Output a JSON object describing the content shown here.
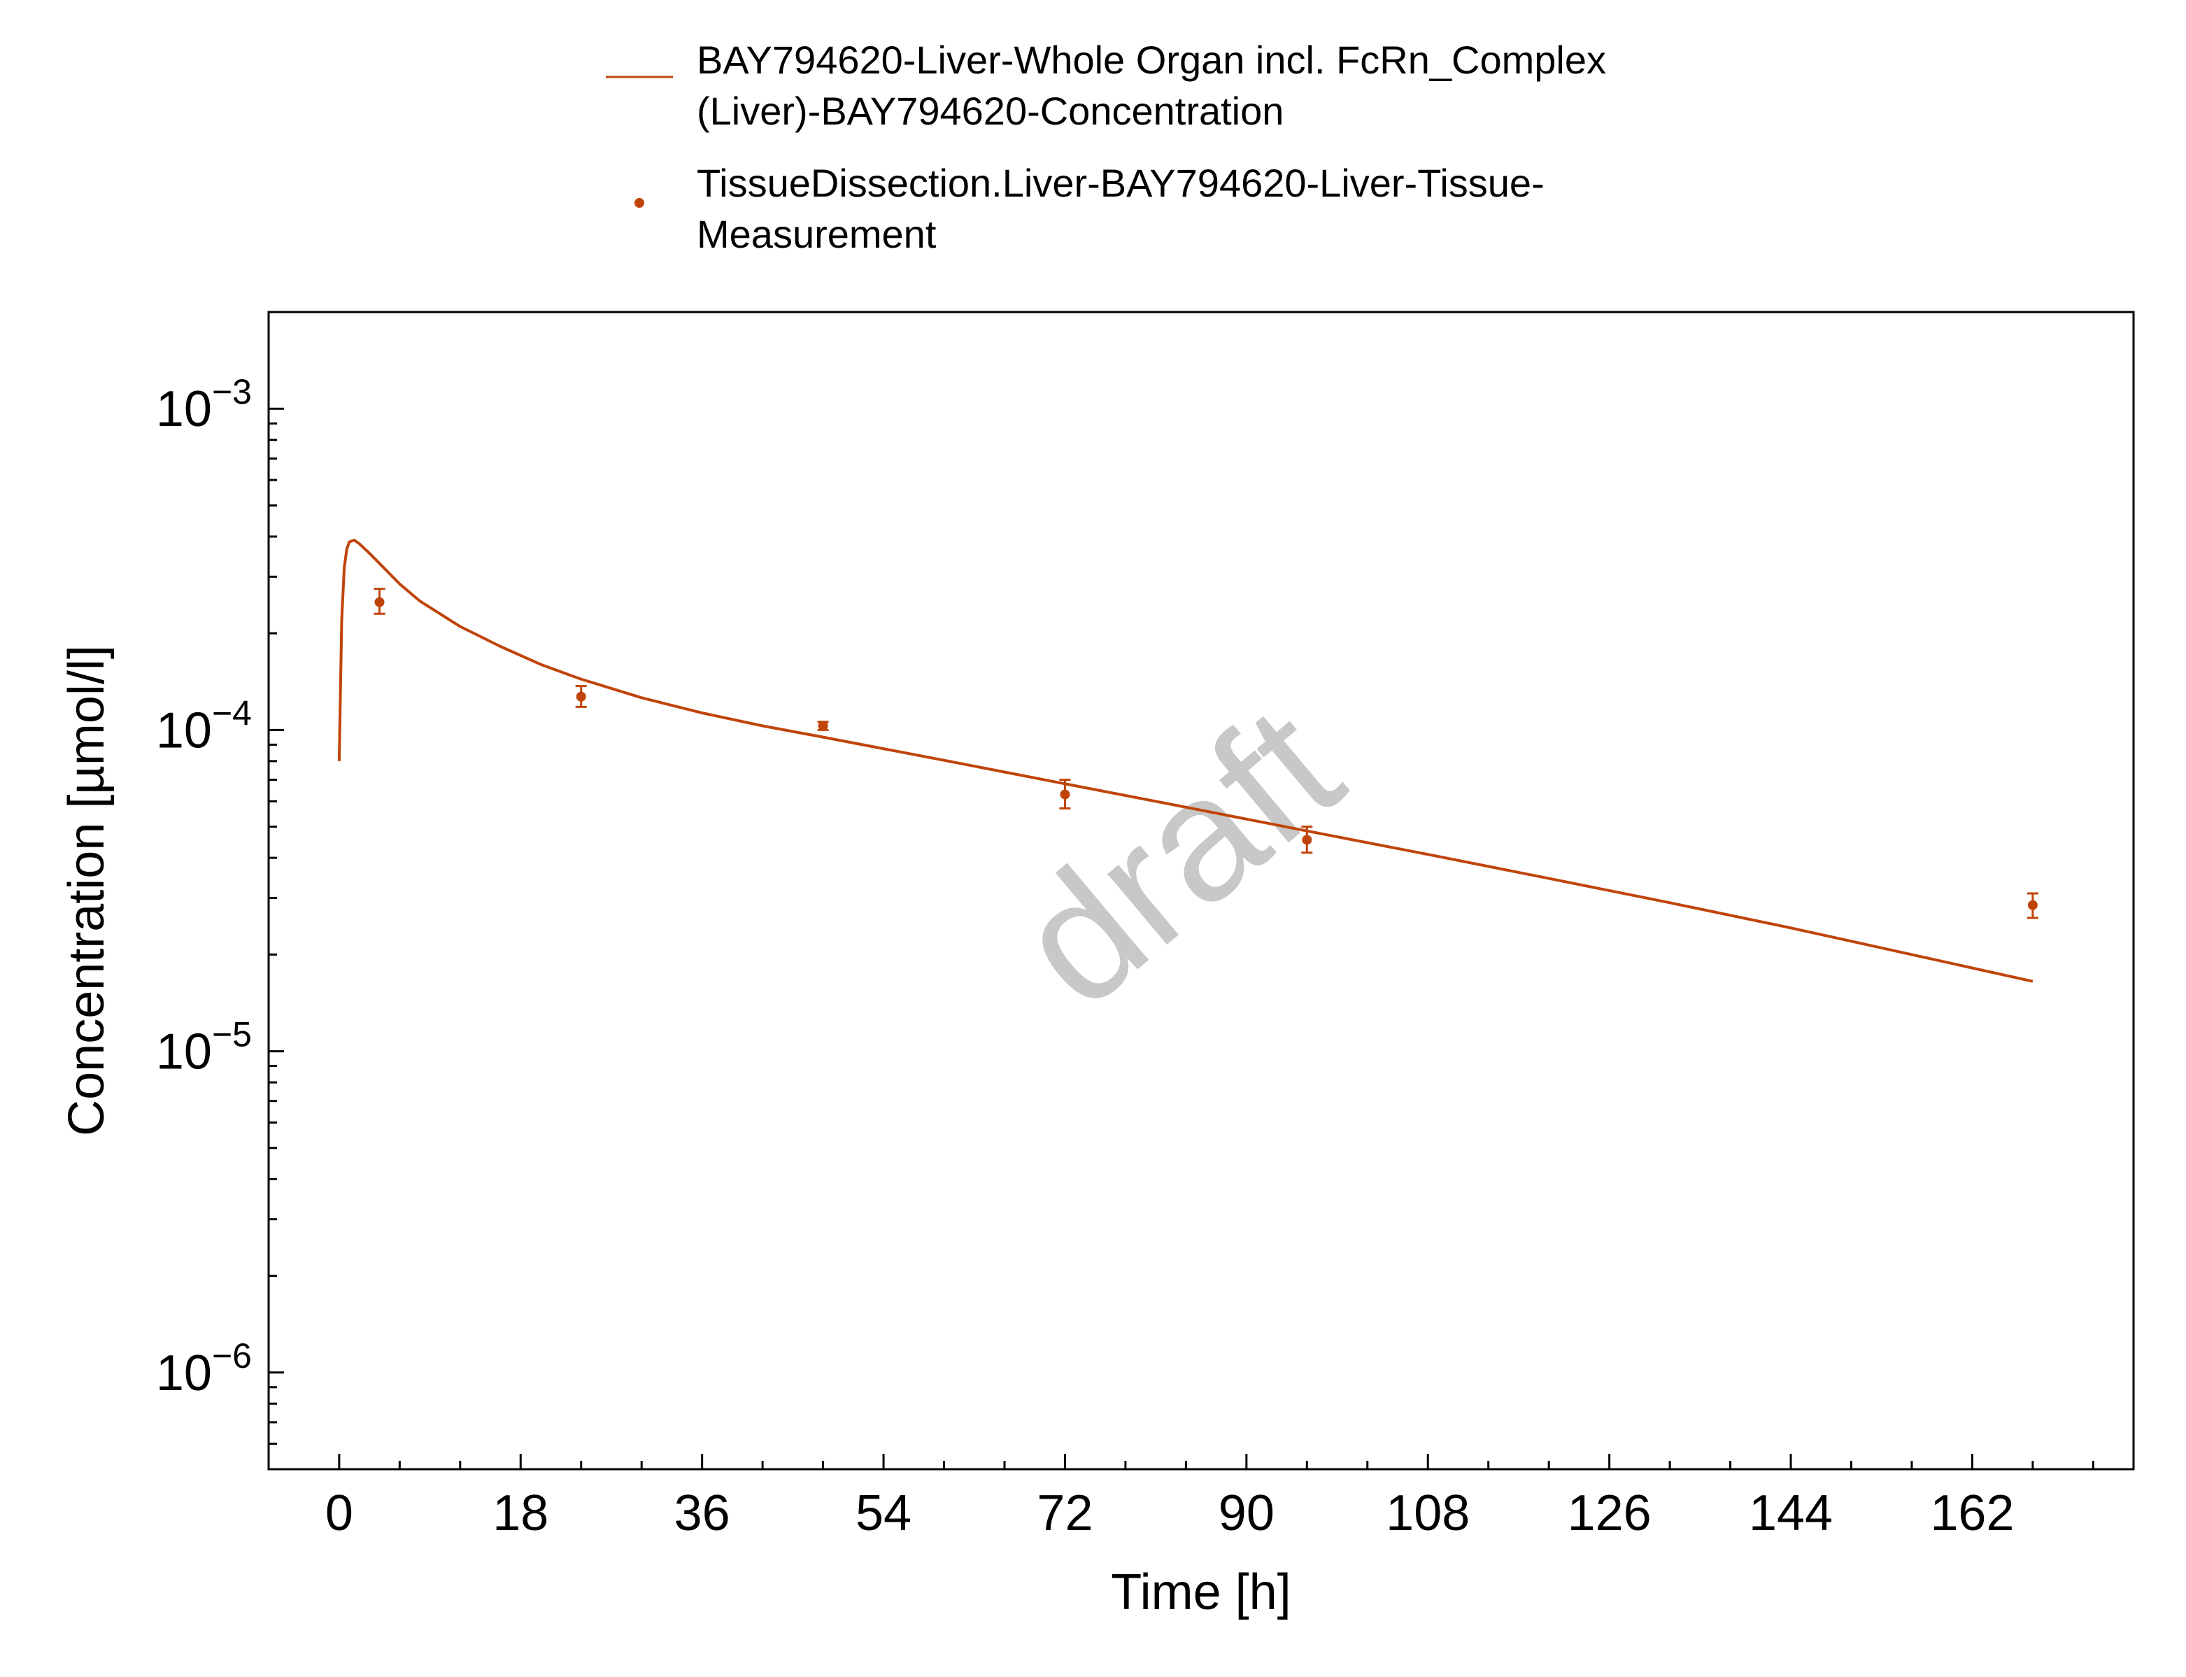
{
  "colors": {
    "series": "#c0440a",
    "watermark": "#c8c8c8",
    "axis": "#000000",
    "background": "#ffffff"
  },
  "watermark": "draft",
  "chart_data": {
    "type": "line",
    "xlabel": "Time [h]",
    "ylabel": "Concentration [µmol/l]",
    "xlim": [
      -7,
      178
    ],
    "ylim": [
      5e-07,
      0.002
    ],
    "yscale": "log",
    "grid": false,
    "legend_position": "top",
    "x_ticks": [
      0,
      18,
      36,
      54,
      72,
      90,
      108,
      126,
      144,
      162
    ],
    "y_ticks": [
      {
        "exp": "-3",
        "value": 0.001
      },
      {
        "exp": "-4",
        "value": 0.0001
      },
      {
        "exp": "-5",
        "value": 1e-05
      },
      {
        "exp": "-6",
        "value": 1e-06
      }
    ],
    "y_tick_base": "10",
    "series": [
      {
        "name_lines": [
          "BAY794620-Liver-Whole Organ incl. FcRn_Complex",
          "(Liver)-BAY794620-Concentration"
        ],
        "kind": "line",
        "x": [
          0,
          0.25,
          0.5,
          0.75,
          1,
          1.5,
          2,
          3,
          4,
          6,
          8,
          12,
          16,
          20,
          24,
          30,
          36,
          42,
          48,
          60,
          72,
          84,
          96,
          108,
          120,
          132,
          144,
          156,
          168
        ],
        "y": [
          8e-05,
          0.00022,
          0.00032,
          0.000365,
          0.000385,
          0.00039,
          0.00038,
          0.000355,
          0.00033,
          0.000285,
          0.000252,
          0.00021,
          0.000182,
          0.00016,
          0.000144,
          0.000126,
          0.000113,
          0.000103,
          9.5e-05,
          8.05e-05,
          6.8e-05,
          5.75e-05,
          4.85e-05,
          4.1e-05,
          3.45e-05,
          2.9e-05,
          2.42e-05,
          2e-05,
          1.65e-05
        ]
      },
      {
        "name_lines": [
          "TissueDissection.Liver-BAY794620-Liver-Tissue-",
          "Measurement"
        ],
        "kind": "scatter",
        "x": [
          4,
          24,
          48,
          72,
          96,
          168
        ],
        "y": [
          0.00025,
          0.000127,
          0.000103,
          6.3e-05,
          4.55e-05,
          2.85e-05
        ],
        "err_low": [
          0.00023,
          0.000118,
          0.0001,
          5.7e-05,
          4.15e-05,
          2.6e-05
        ],
        "err_high": [
          0.000275,
          0.000137,
          0.000106,
          7e-05,
          5e-05,
          3.1e-05
        ]
      }
    ]
  }
}
